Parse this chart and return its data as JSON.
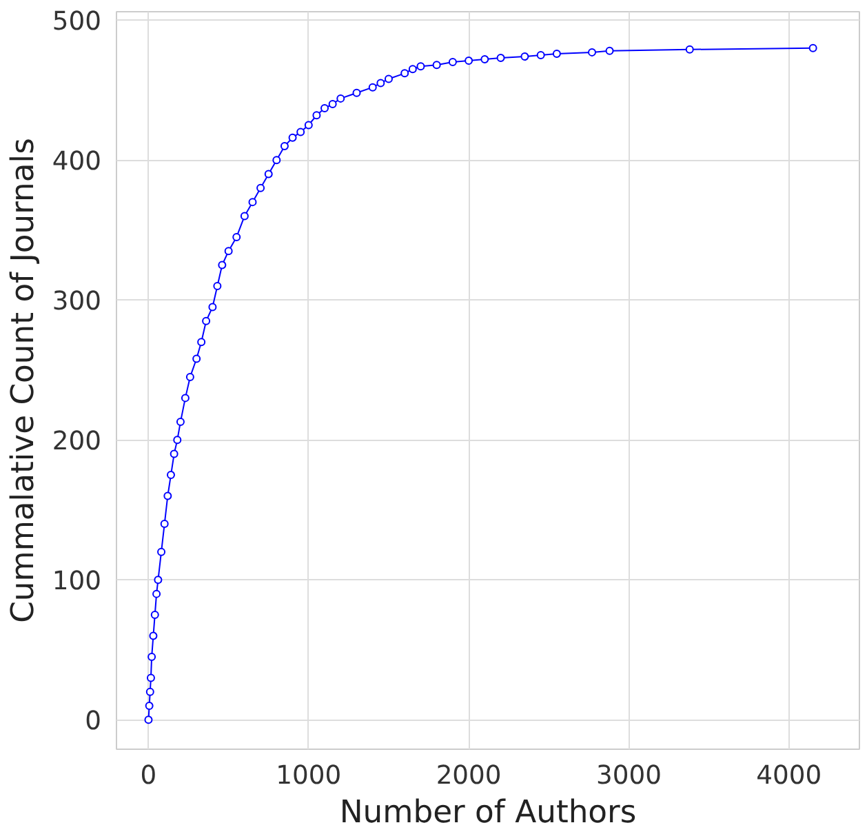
{
  "chart_data": {
    "type": "line",
    "xlabel": "Number of Authors",
    "ylabel": "Cummalative Count of Journals",
    "xlim": [
      -200,
      4440
    ],
    "ylim": [
      -21,
      506
    ],
    "xticks": [
      0,
      1000,
      2000,
      3000,
      4000
    ],
    "yticks": [
      0,
      100,
      200,
      300,
      400,
      500
    ],
    "grid": true,
    "marker": "circle",
    "line_style": "solid",
    "series": [
      {
        "color": "#0000ff",
        "x": [
          0,
          5,
          10,
          15,
          20,
          30,
          40,
          50,
          60,
          80,
          100,
          120,
          140,
          160,
          180,
          200,
          230,
          260,
          300,
          330,
          360,
          400,
          430,
          460,
          500,
          550,
          600,
          650,
          700,
          750,
          800,
          850,
          900,
          950,
          1000,
          1050,
          1100,
          1150,
          1200,
          1300,
          1400,
          1450,
          1500,
          1600,
          1650,
          1700,
          1800,
          1900,
          2000,
          2100,
          2200,
          2350,
          2450,
          2550,
          2770,
          2880,
          3380,
          4150
        ],
        "values": [
          0,
          10,
          20,
          30,
          45,
          60,
          75,
          90,
          100,
          120,
          140,
          160,
          175,
          190,
          200,
          213,
          230,
          245,
          258,
          270,
          285,
          295,
          310,
          325,
          335,
          345,
          360,
          370,
          380,
          390,
          400,
          410,
          416,
          420,
          425,
          432,
          437,
          440,
          444,
          448,
          452,
          455,
          458,
          462,
          465,
          467,
          468,
          470,
          471,
          472,
          473,
          474,
          475,
          476,
          477,
          478,
          479,
          480
        ]
      }
    ]
  }
}
